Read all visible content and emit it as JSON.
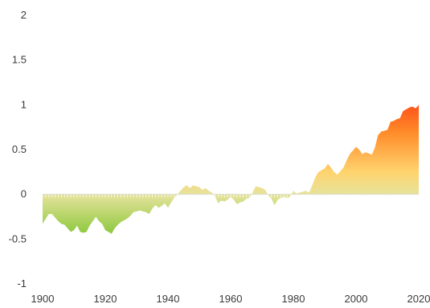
{
  "chart_data": {
    "type": "area",
    "title": "",
    "xlabel": "",
    "ylabel": "",
    "xlim": [
      1900,
      2020
    ],
    "ylim": [
      -1,
      2
    ],
    "grid": false,
    "x_ticks": [
      1900,
      1920,
      1940,
      1960,
      1980,
      2000,
      2020
    ],
    "x_tick_labels": [
      "1900",
      "1920",
      "1940",
      "1960",
      "1980",
      "2000",
      "2020"
    ],
    "y_ticks": [
      2,
      1.5,
      1,
      0.5,
      0,
      -0.5,
      -1
    ],
    "y_tick_labels": [
      "2",
      "1.5",
      "1",
      "0.5",
      "0",
      "-0.5",
      "-1"
    ],
    "colors": {
      "cold": "#8cc83c",
      "neutral": "#e6e39c",
      "warm": "#ffd36e",
      "mid": "#ff8a28",
      "hot": "#ff1a0a"
    },
    "series": [
      {
        "x": [
          1900,
          1901,
          1902,
          1903,
          1904,
          1905,
          1906,
          1907,
          1908,
          1909,
          1910,
          1911,
          1912,
          1913,
          1914,
          1915,
          1916,
          1917,
          1918,
          1919,
          1920,
          1921,
          1922,
          1923,
          1924,
          1925,
          1926,
          1927,
          1928,
          1929,
          1930,
          1931,
          1932,
          1933,
          1934,
          1935,
          1936,
          1937,
          1938,
          1939,
          1940,
          1941,
          1942,
          1943,
          1944,
          1945,
          1946,
          1947,
          1948,
          1949,
          1950,
          1951,
          1952,
          1953,
          1954,
          1955,
          1956,
          1957,
          1958,
          1959,
          1960,
          1961,
          1962,
          1963,
          1964,
          1965,
          1966,
          1967,
          1968,
          1969,
          1970,
          1971,
          1972,
          1973,
          1974,
          1975,
          1976,
          1977,
          1978,
          1979,
          1980,
          1981,
          1982,
          1983,
          1984,
          1985,
          1986,
          1987,
          1988,
          1989,
          1990,
          1991,
          1992,
          1993,
          1994,
          1995,
          1996,
          1997,
          1998,
          1999,
          2000,
          2001,
          2002,
          2003,
          2004,
          2005,
          2006,
          2007,
          2008,
          2009,
          2010,
          2011,
          2012,
          2013,
          2014,
          2015,
          2016,
          2017,
          2018,
          2019,
          2020
        ],
        "values": [
          -0.33,
          -0.27,
          -0.22,
          -0.22,
          -0.26,
          -0.3,
          -0.33,
          -0.34,
          -0.38,
          -0.42,
          -0.4,
          -0.35,
          -0.42,
          -0.43,
          -0.42,
          -0.35,
          -0.3,
          -0.25,
          -0.3,
          -0.33,
          -0.4,
          -0.42,
          -0.44,
          -0.38,
          -0.34,
          -0.31,
          -0.29,
          -0.27,
          -0.24,
          -0.2,
          -0.19,
          -0.18,
          -0.19,
          -0.2,
          -0.22,
          -0.16,
          -0.12,
          -0.15,
          -0.13,
          -0.1,
          -0.15,
          -0.09,
          -0.04,
          0.0,
          0.04,
          0.08,
          0.1,
          0.07,
          0.1,
          0.09,
          0.08,
          0.05,
          0.07,
          0.04,
          0.02,
          -0.02,
          -0.1,
          -0.07,
          -0.08,
          -0.06,
          -0.03,
          -0.06,
          -0.11,
          -0.09,
          -0.08,
          -0.05,
          -0.04,
          0.02,
          0.09,
          0.08,
          0.07,
          0.05,
          -0.01,
          -0.05,
          -0.12,
          -0.06,
          -0.04,
          -0.03,
          -0.04,
          -0.03,
          0.04,
          0.01,
          0.02,
          0.03,
          0.04,
          0.02,
          0.1,
          0.19,
          0.25,
          0.27,
          0.29,
          0.34,
          0.3,
          0.25,
          0.22,
          0.26,
          0.3,
          0.38,
          0.45,
          0.49,
          0.53,
          0.5,
          0.45,
          0.47,
          0.46,
          0.44,
          0.52,
          0.66,
          0.7,
          0.71,
          0.72,
          0.81,
          0.82,
          0.84,
          0.85,
          0.93,
          0.95,
          0.97,
          0.98,
          0.96,
          1.0
        ]
      }
    ]
  }
}
